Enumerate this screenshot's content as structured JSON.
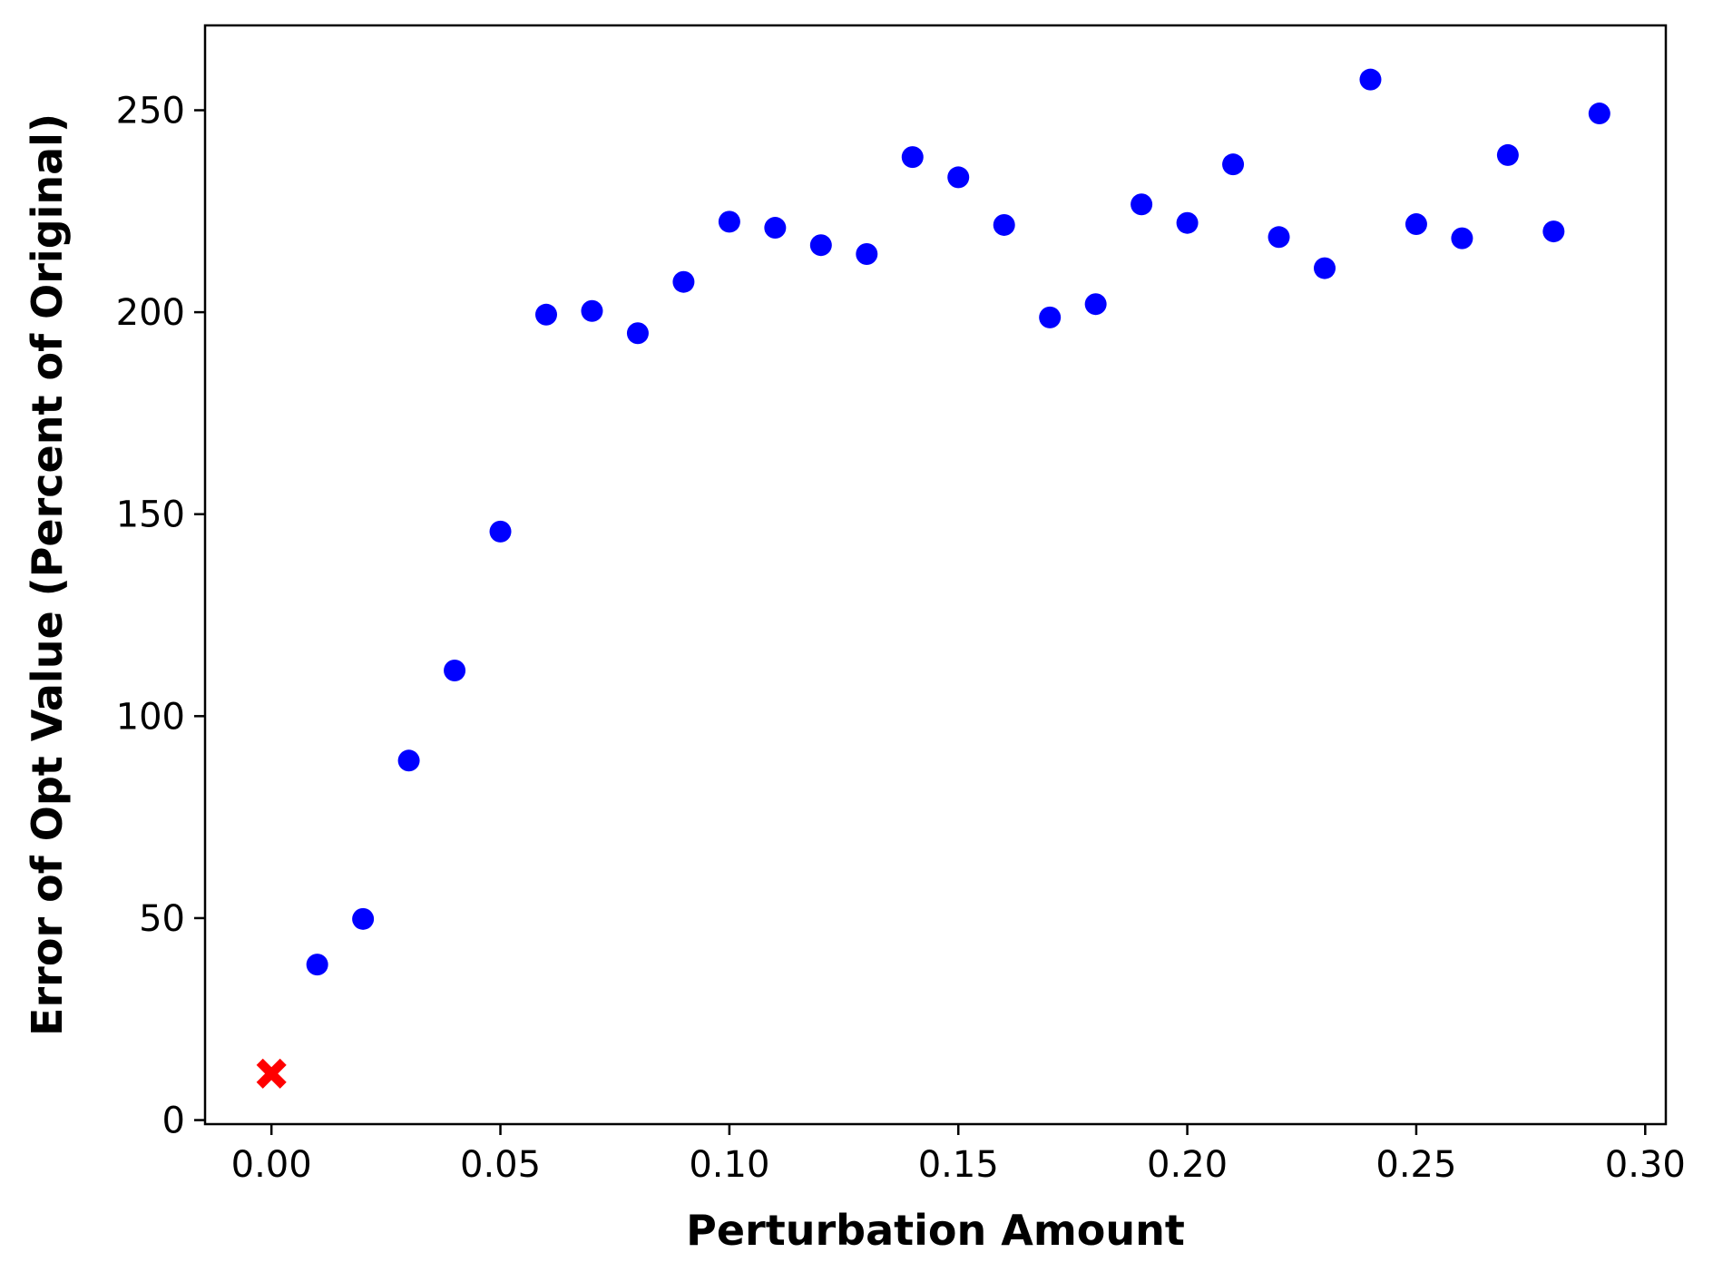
{
  "chart_data": {
    "type": "scatter",
    "title": "",
    "xlabel": "Perturbation Amount",
    "ylabel": "Error of Opt Value (Percent of Original)",
    "xlim": [
      -0.0145,
      0.3045
    ],
    "ylim": [
      -1,
      271
    ],
    "xticks": [
      0.0,
      0.05,
      0.1,
      0.15,
      0.2,
      0.25,
      0.3
    ],
    "xtick_labels": [
      "0.00",
      "0.05",
      "0.10",
      "0.15",
      "0.20",
      "0.25",
      "0.30"
    ],
    "yticks": [
      0,
      50,
      100,
      150,
      200,
      250
    ],
    "ytick_labels": [
      "0",
      "50",
      "100",
      "150",
      "200",
      "250"
    ],
    "grid": false,
    "legend": "none",
    "series": [
      {
        "marker": "circle",
        "color": "#0000ff",
        "x": [
          0.01,
          0.02,
          0.03,
          0.04,
          0.05,
          0.06,
          0.07,
          0.08,
          0.09,
          0.1,
          0.11,
          0.12,
          0.13,
          0.14,
          0.15,
          0.16,
          0.17,
          0.18,
          0.19,
          0.2,
          0.21,
          0.22,
          0.23,
          0.24,
          0.25,
          0.26,
          0.27,
          0.28,
          0.29
        ],
        "y": [
          38.5,
          49.8,
          89.0,
          111.3,
          145.7,
          199.4,
          200.3,
          194.8,
          207.5,
          222.4,
          220.9,
          216.6,
          214.4,
          238.4,
          233.4,
          221.6,
          198.7,
          202.0,
          226.7,
          222.1,
          236.6,
          218.6,
          210.9,
          257.6,
          221.8,
          218.3,
          238.9,
          220.0,
          249.2
        ]
      },
      {
        "marker": "x",
        "color": "#ff0000",
        "x": [
          0.0
        ],
        "y": [
          11.5
        ]
      }
    ]
  }
}
